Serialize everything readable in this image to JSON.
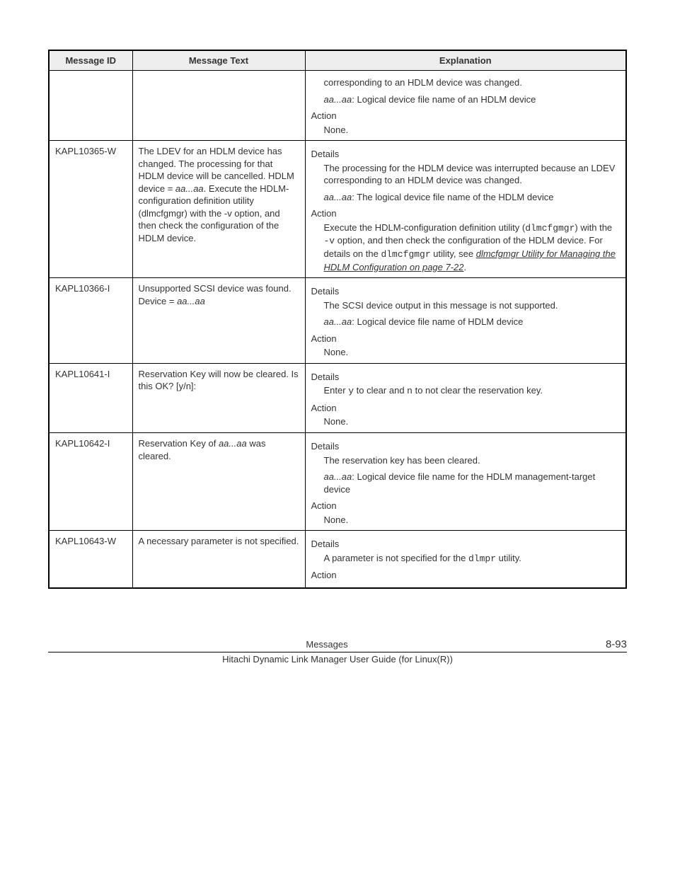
{
  "table": {
    "headers": [
      "Message ID",
      "Message Text",
      "Explanation"
    ],
    "rows": [
      {
        "id": "",
        "text_segments": [],
        "expl_segments": [
          {
            "kind": "body",
            "parts": [
              {
                "t": "corresponding to an HDLM device was changed."
              }
            ]
          },
          {
            "kind": "body",
            "parts": [
              {
                "t": "aa...aa",
                "style": "ital"
              },
              {
                "t": ": Logical device file name of an HDLM device"
              }
            ]
          },
          {
            "kind": "head",
            "parts": [
              {
                "t": "Action"
              }
            ]
          },
          {
            "kind": "body",
            "parts": [
              {
                "t": "None."
              }
            ]
          }
        ]
      },
      {
        "id": "KAPL10365-W",
        "text_segments": [
          {
            "kind": "plain",
            "parts": [
              {
                "t": "The LDEV for an HDLM device has changed. The processing for that HDLM device will be cancelled. HDLM device = "
              },
              {
                "t": "aa...aa",
                "style": "ital"
              },
              {
                "t": ". Execute the HDLM-configuration definition utility (dlmcfgmgr) with the -v option, and then check the configuration of the HDLM device."
              }
            ]
          }
        ],
        "expl_segments": [
          {
            "kind": "head",
            "parts": [
              {
                "t": "Details"
              }
            ]
          },
          {
            "kind": "body",
            "parts": [
              {
                "t": "The processing for the HDLM device was interrupted because an LDEV corresponding to an HDLM device was changed."
              }
            ]
          },
          {
            "kind": "body",
            "parts": [
              {
                "t": "aa...aa",
                "style": "ital"
              },
              {
                "t": ": The logical device file name of the HDLM device"
              }
            ]
          },
          {
            "kind": "head",
            "parts": [
              {
                "t": "Action"
              }
            ]
          },
          {
            "kind": "body",
            "parts": [
              {
                "t": "Execute the HDLM-configuration definition utility ("
              },
              {
                "t": "dlmcfgmgr",
                "style": "mono"
              },
              {
                "t": ") with the "
              },
              {
                "t": "-v",
                "style": "mono"
              },
              {
                "t": " option, and then check the configuration of the HDLM device. For details on the "
              },
              {
                "t": "dlmcfgmgr",
                "style": "mono"
              },
              {
                "t": " utility, see "
              },
              {
                "t": "dlmcfgmgr Utility for Managing the HDLM Configuration on page 7-22",
                "style": "xref"
              },
              {
                "t": "."
              }
            ]
          }
        ]
      },
      {
        "id": "KAPL10366-I",
        "text_segments": [
          {
            "kind": "plain",
            "parts": [
              {
                "t": "Unsupported SCSI device was found. Device = "
              },
              {
                "t": "aa...aa",
                "style": "ital"
              }
            ]
          }
        ],
        "expl_segments": [
          {
            "kind": "head",
            "parts": [
              {
                "t": "Details"
              }
            ]
          },
          {
            "kind": "body",
            "parts": [
              {
                "t": "The SCSI device output in this message is not supported."
              }
            ]
          },
          {
            "kind": "body",
            "parts": [
              {
                "t": "aa...aa",
                "style": "ital"
              },
              {
                "t": ": Logical device file name of HDLM device"
              }
            ]
          },
          {
            "kind": "head",
            "parts": [
              {
                "t": "Action"
              }
            ]
          },
          {
            "kind": "body",
            "parts": [
              {
                "t": "None."
              }
            ]
          }
        ]
      },
      {
        "id": "KAPL10641-I",
        "text_segments": [
          {
            "kind": "plain",
            "parts": [
              {
                "t": "Reservation Key will now be cleared. Is this OK? [y/n]:"
              }
            ]
          }
        ],
        "expl_segments": [
          {
            "kind": "head",
            "parts": [
              {
                "t": "Details"
              }
            ]
          },
          {
            "kind": "body",
            "parts": [
              {
                "t": "Enter "
              },
              {
                "t": "y",
                "style": "mono"
              },
              {
                "t": " to clear and "
              },
              {
                "t": "n",
                "style": "mono"
              },
              {
                "t": " to not clear the reservation key."
              }
            ]
          },
          {
            "kind": "head",
            "parts": [
              {
                "t": "Action"
              }
            ]
          },
          {
            "kind": "body",
            "parts": [
              {
                "t": "None."
              }
            ]
          }
        ]
      },
      {
        "id": "KAPL10642-I",
        "text_segments": [
          {
            "kind": "plain",
            "parts": [
              {
                "t": "Reservation Key of "
              },
              {
                "t": "aa...aa",
                "style": "ital"
              },
              {
                "t": " was cleared."
              }
            ]
          }
        ],
        "expl_segments": [
          {
            "kind": "head",
            "parts": [
              {
                "t": "Details"
              }
            ]
          },
          {
            "kind": "body",
            "parts": [
              {
                "t": "The reservation key has been cleared."
              }
            ]
          },
          {
            "kind": "body",
            "parts": [
              {
                "t": "aa...aa",
                "style": "ital"
              },
              {
                "t": ": Logical device file name for the HDLM management-target device"
              }
            ]
          },
          {
            "kind": "head",
            "parts": [
              {
                "t": "Action"
              }
            ]
          },
          {
            "kind": "body",
            "parts": [
              {
                "t": "None."
              }
            ]
          }
        ]
      },
      {
        "id": "KAPL10643-W",
        "text_segments": [
          {
            "kind": "plain",
            "parts": [
              {
                "t": "A necessary parameter is not specified."
              }
            ]
          }
        ],
        "expl_segments": [
          {
            "kind": "head",
            "parts": [
              {
                "t": "Details"
              }
            ]
          },
          {
            "kind": "body",
            "parts": [
              {
                "t": "A parameter is not specified for the "
              },
              {
                "t": "dlmpr",
                "style": "mono"
              },
              {
                "t": " utility."
              }
            ]
          },
          {
            "kind": "head",
            "parts": [
              {
                "t": "Action"
              }
            ]
          }
        ]
      }
    ]
  },
  "footer": {
    "center": "Messages",
    "right": "8-93",
    "sub": "Hitachi Dynamic Link Manager User Guide (for Linux(R))"
  }
}
